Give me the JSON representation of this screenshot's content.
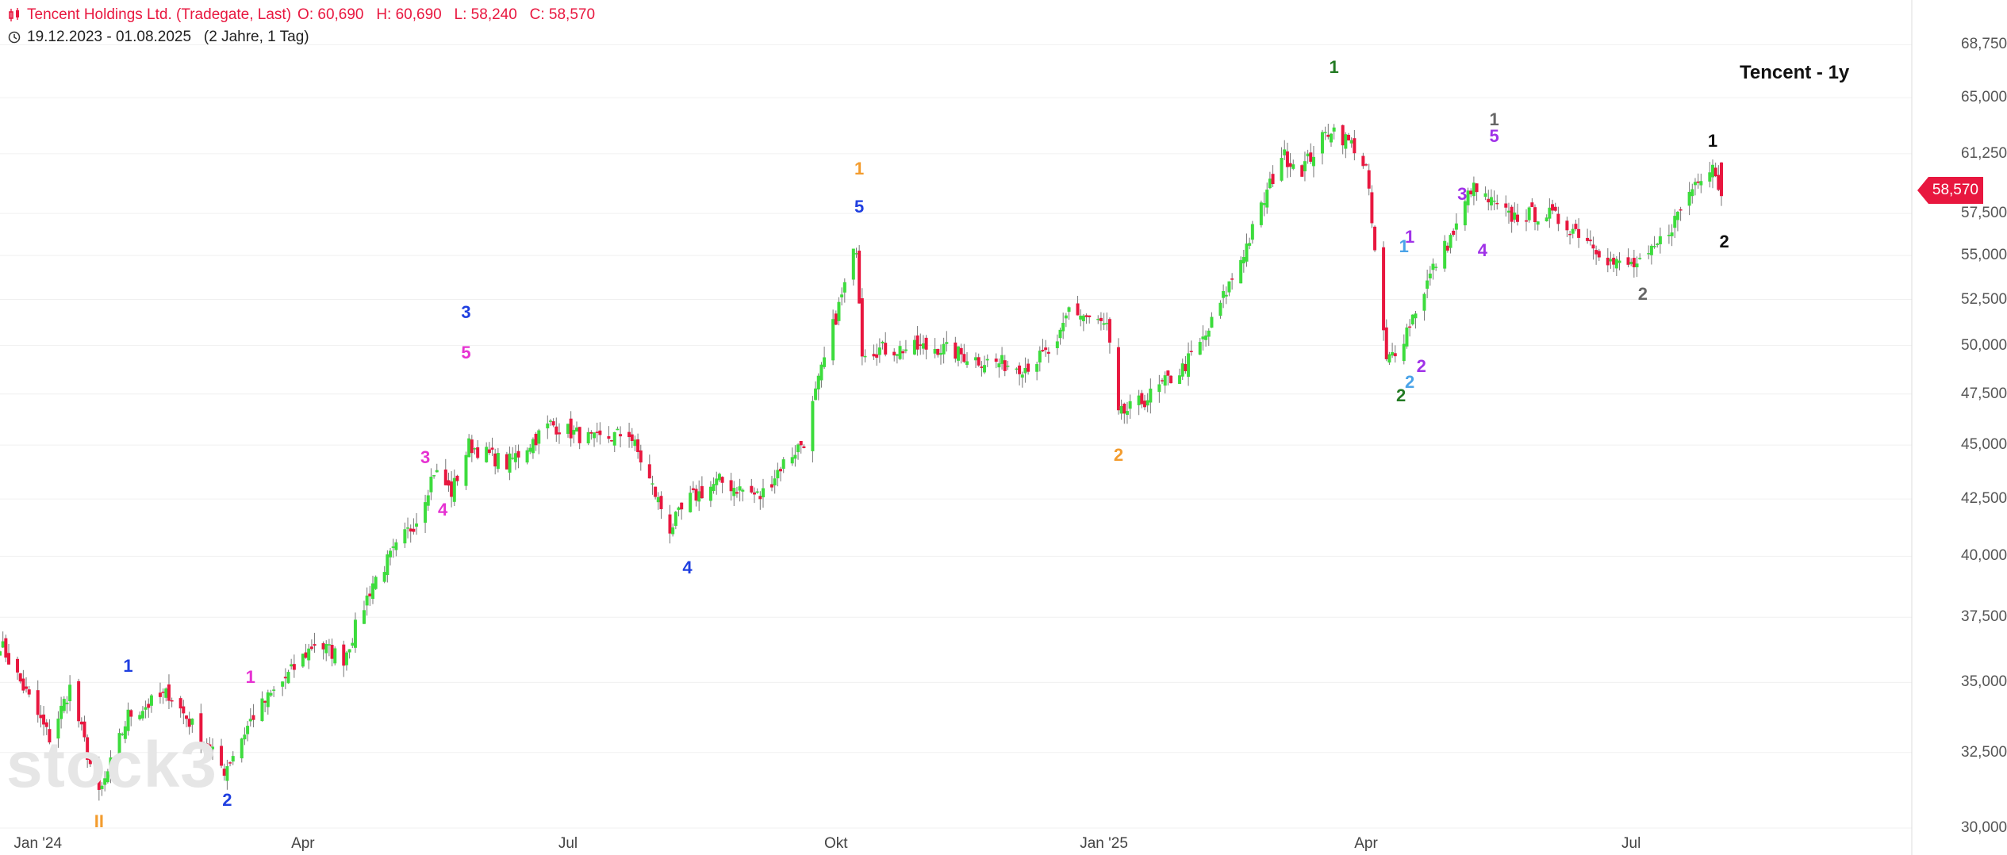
{
  "header": {
    "instrument": "Tencent Holdings Ltd. (Tradegate, Last)",
    "ohlc": "O: 60,690   H: 60,690   L: 58,240   C: 58,570",
    "range": "19.12.2023 - 01.08.2025   (2 Jahre, 1 Tag)"
  },
  "watermark": "stock3",
  "last_price_label": "58,570",
  "colors": {
    "up": "#3ddc3d",
    "down": "#e8173f",
    "grid": "#f0f0f0",
    "axis": "#dddddd"
  },
  "chart_data": {
    "type": "candlestick",
    "title": "Tencent - 1y",
    "x_range": [
      "2023-12-19",
      "2025-08-01"
    ],
    "x_tick_labels": [
      "Jan '24",
      "Apr",
      "Jul",
      "Okt",
      "Jan '25",
      "Apr",
      "Jul"
    ],
    "y_scale": "log",
    "y_tick_labels": [
      "68,750",
      "65,000",
      "61,250",
      "57,500",
      "55,000",
      "52,500",
      "50,000",
      "47,500",
      "45,000",
      "42,500",
      "40,000",
      "37,500",
      "35,000",
      "32,500",
      "30,000"
    ],
    "y_ticks": [
      68750,
      65000,
      61250,
      57500,
      55000,
      52500,
      50000,
      47500,
      45000,
      42500,
      40000,
      37500,
      35000,
      32500,
      30000
    ],
    "last_close": 58570,
    "anchors": [
      [
        "2023-12-19",
        36500
      ],
      [
        "2024-01-05",
        33000
      ],
      [
        "2024-01-12",
        34800
      ],
      [
        "2024-01-22",
        31000
      ],
      [
        "2024-02-01",
        33800
      ],
      [
        "2024-02-15",
        34600
      ],
      [
        "2024-03-05",
        31900
      ],
      [
        "2024-03-15",
        33800
      ],
      [
        "2024-03-28",
        35400
      ],
      [
        "2024-04-05",
        36500
      ],
      [
        "2024-04-15",
        35900
      ],
      [
        "2024-04-25",
        38900
      ],
      [
        "2024-05-10",
        41600
      ],
      [
        "2024-05-16",
        43800
      ],
      [
        "2024-05-22",
        42800
      ],
      [
        "2024-05-28",
        45000
      ],
      [
        "2024-06-10",
        44100
      ],
      [
        "2024-06-25",
        46000
      ],
      [
        "2024-07-10",
        45200
      ],
      [
        "2024-07-22",
        45600
      ],
      [
        "2024-08-05",
        41200
      ],
      [
        "2024-08-12",
        42500
      ],
      [
        "2024-08-22",
        43300
      ],
      [
        "2024-09-05",
        42600
      ],
      [
        "2024-09-12",
        44000
      ],
      [
        "2024-09-20",
        45200
      ],
      [
        "2024-09-24",
        47500
      ],
      [
        "2024-09-30",
        51000
      ],
      [
        "2024-10-08",
        55600
      ],
      [
        "2024-10-10",
        49800
      ],
      [
        "2024-10-20",
        49800
      ],
      [
        "2024-11-05",
        49900
      ],
      [
        "2024-11-20",
        49200
      ],
      [
        "2024-12-05",
        48900
      ],
      [
        "2024-12-16",
        49900
      ],
      [
        "2024-12-20",
        52000
      ],
      [
        "2025-01-02",
        51000
      ],
      [
        "2025-01-06",
        46400
      ],
      [
        "2025-01-15",
        47200
      ],
      [
        "2025-01-28",
        48800
      ],
      [
        "2025-02-05",
        50500
      ],
      [
        "2025-02-14",
        53700
      ],
      [
        "2025-02-20",
        56000
      ],
      [
        "2025-03-03",
        61200
      ],
      [
        "2025-03-10",
        60300
      ],
      [
        "2025-03-20",
        63000
      ],
      [
        "2025-03-28",
        61700
      ],
      [
        "2025-04-01",
        60300
      ],
      [
        "2025-04-08",
        49100
      ],
      [
        "2025-04-14",
        50500
      ],
      [
        "2025-04-25",
        54600
      ],
      [
        "2025-05-02",
        56600
      ],
      [
        "2025-05-07",
        59100
      ],
      [
        "2025-05-20",
        57300
      ],
      [
        "2025-06-02",
        57500
      ],
      [
        "2025-06-15",
        56200
      ],
      [
        "2025-06-25",
        54500
      ],
      [
        "2025-07-05",
        54400
      ],
      [
        "2025-07-15",
        56800
      ],
      [
        "2025-07-24",
        59800
      ],
      [
        "2025-07-29",
        60700
      ],
      [
        "2025-08-01",
        58570
      ]
    ],
    "wave_labels": [
      {
        "text": "II",
        "date": "2024-01-22",
        "price": 30200,
        "color": "#f39c2e"
      },
      {
        "text": "1",
        "date": "2024-02-01",
        "price": 35600,
        "color": "#1f3fe0"
      },
      {
        "text": "2",
        "date": "2024-03-06",
        "price": 30900,
        "color": "#1f3fe0"
      },
      {
        "text": "1",
        "date": "2024-03-14",
        "price": 35200,
        "color": "#e632d2"
      },
      {
        "text": "3",
        "date": "2024-05-13",
        "price": 44400,
        "color": "#e632d2"
      },
      {
        "text": "4",
        "date": "2024-05-19",
        "price": 42000,
        "color": "#e632d2"
      },
      {
        "text": "3",
        "date": "2024-05-27",
        "price": 51800,
        "color": "#1f3fe0"
      },
      {
        "text": "5",
        "date": "2024-05-27",
        "price": 49600,
        "color": "#e632d2"
      },
      {
        "text": "4",
        "date": "2024-08-11",
        "price": 39500,
        "color": "#1f3fe0"
      },
      {
        "text": "1",
        "date": "2024-10-09",
        "price": 60300,
        "color": "#f39c2e"
      },
      {
        "text": "5",
        "date": "2024-10-09",
        "price": 57900,
        "color": "#1f3fe0"
      },
      {
        "text": "2",
        "date": "2025-01-06",
        "price": 44500,
        "color": "#f39c2e"
      },
      {
        "text": "1",
        "date": "2025-03-21",
        "price": 67100,
        "color": "#237a23"
      },
      {
        "text": "1",
        "date": "2025-04-14",
        "price": 55500,
        "color": "#4aa3e8"
      },
      {
        "text": "1",
        "date": "2025-04-16",
        "price": 56100,
        "color": "#a032e8"
      },
      {
        "text": "2",
        "date": "2025-04-20",
        "price": 48900,
        "color": "#a032e8"
      },
      {
        "text": "2",
        "date": "2025-04-16",
        "price": 48100,
        "color": "#4aa3e8"
      },
      {
        "text": "2",
        "date": "2025-04-13",
        "price": 47400,
        "color": "#237a23"
      },
      {
        "text": "3",
        "date": "2025-05-04",
        "price": 58700,
        "color": "#a032e8"
      },
      {
        "text": "4",
        "date": "2025-05-11",
        "price": 55300,
        "color": "#a032e8"
      },
      {
        "text": "1",
        "date": "2025-05-15",
        "price": 63500,
        "color": "#666666"
      },
      {
        "text": "5",
        "date": "2025-05-15",
        "price": 62400,
        "color": "#a032e8"
      },
      {
        "text": "2",
        "date": "2025-07-05",
        "price": 52800,
        "color": "#666666"
      },
      {
        "text": "1",
        "date": "2025-07-29",
        "price": 62100,
        "color": "#111111"
      },
      {
        "text": "2",
        "date": "2025-08-02",
        "price": 55800,
        "color": "#111111"
      }
    ]
  }
}
